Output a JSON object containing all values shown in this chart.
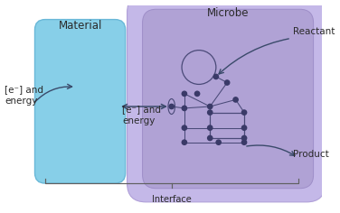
{
  "bg_color": "#ffffff",
  "material_label": "Material",
  "microbe_label": "Microbe",
  "reactant_label": "Reactant",
  "product_label": "Product",
  "interface_label": "Interface",
  "electron_label_left": "[e⁻] and\nenergy",
  "electron_label_middle": "[e⁻] and\nenergy",
  "material_color": "#87cfe8",
  "material_edge_color": "#6ab8d8",
  "microbe_outer_color": "#c4b8e8",
  "microbe_outer_edge": "#b0a0d8",
  "microbe_inner_color": "#b0a2d5",
  "microbe_inner_edge": "#9e8ec8",
  "network_dot_color": "#3a3a68",
  "network_line_color": "#4a4a78",
  "arrow_color": "#3a4a6a",
  "text_color": "#2a2a2a",
  "title_fontsize": 8.5,
  "label_fontsize": 7.5,
  "small_fontsize": 7.0,
  "figw": 3.76,
  "figh": 2.36,
  "dpi": 100
}
